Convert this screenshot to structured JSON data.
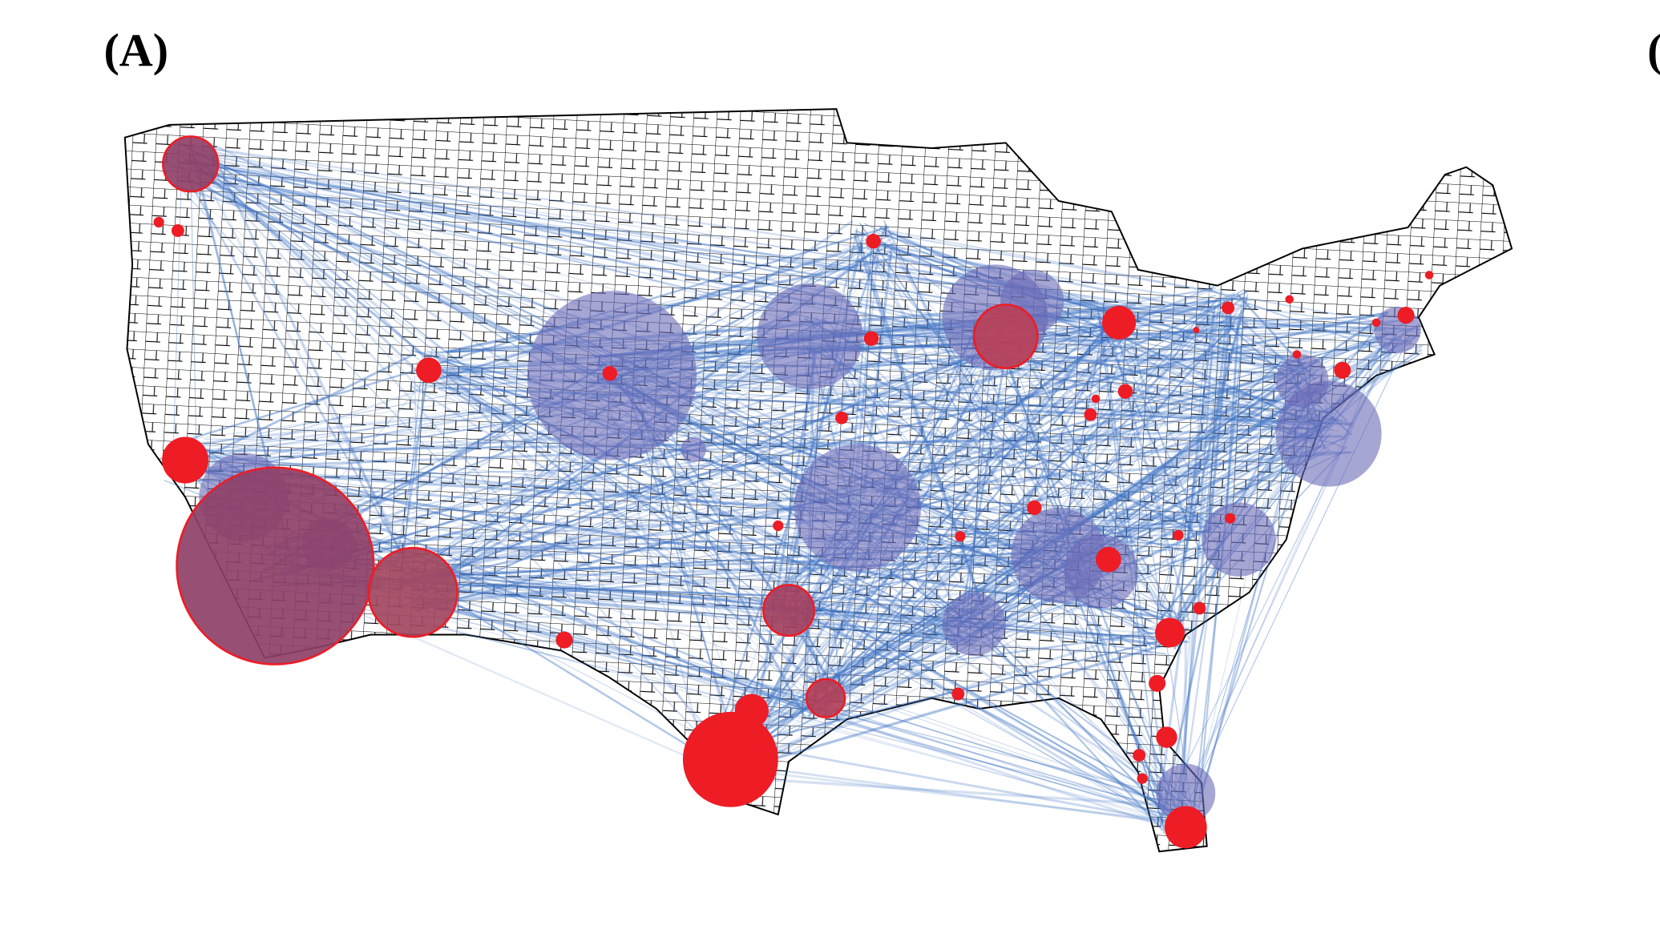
{
  "panel_label": "(A)",
  "next_panel_label": "("
}
